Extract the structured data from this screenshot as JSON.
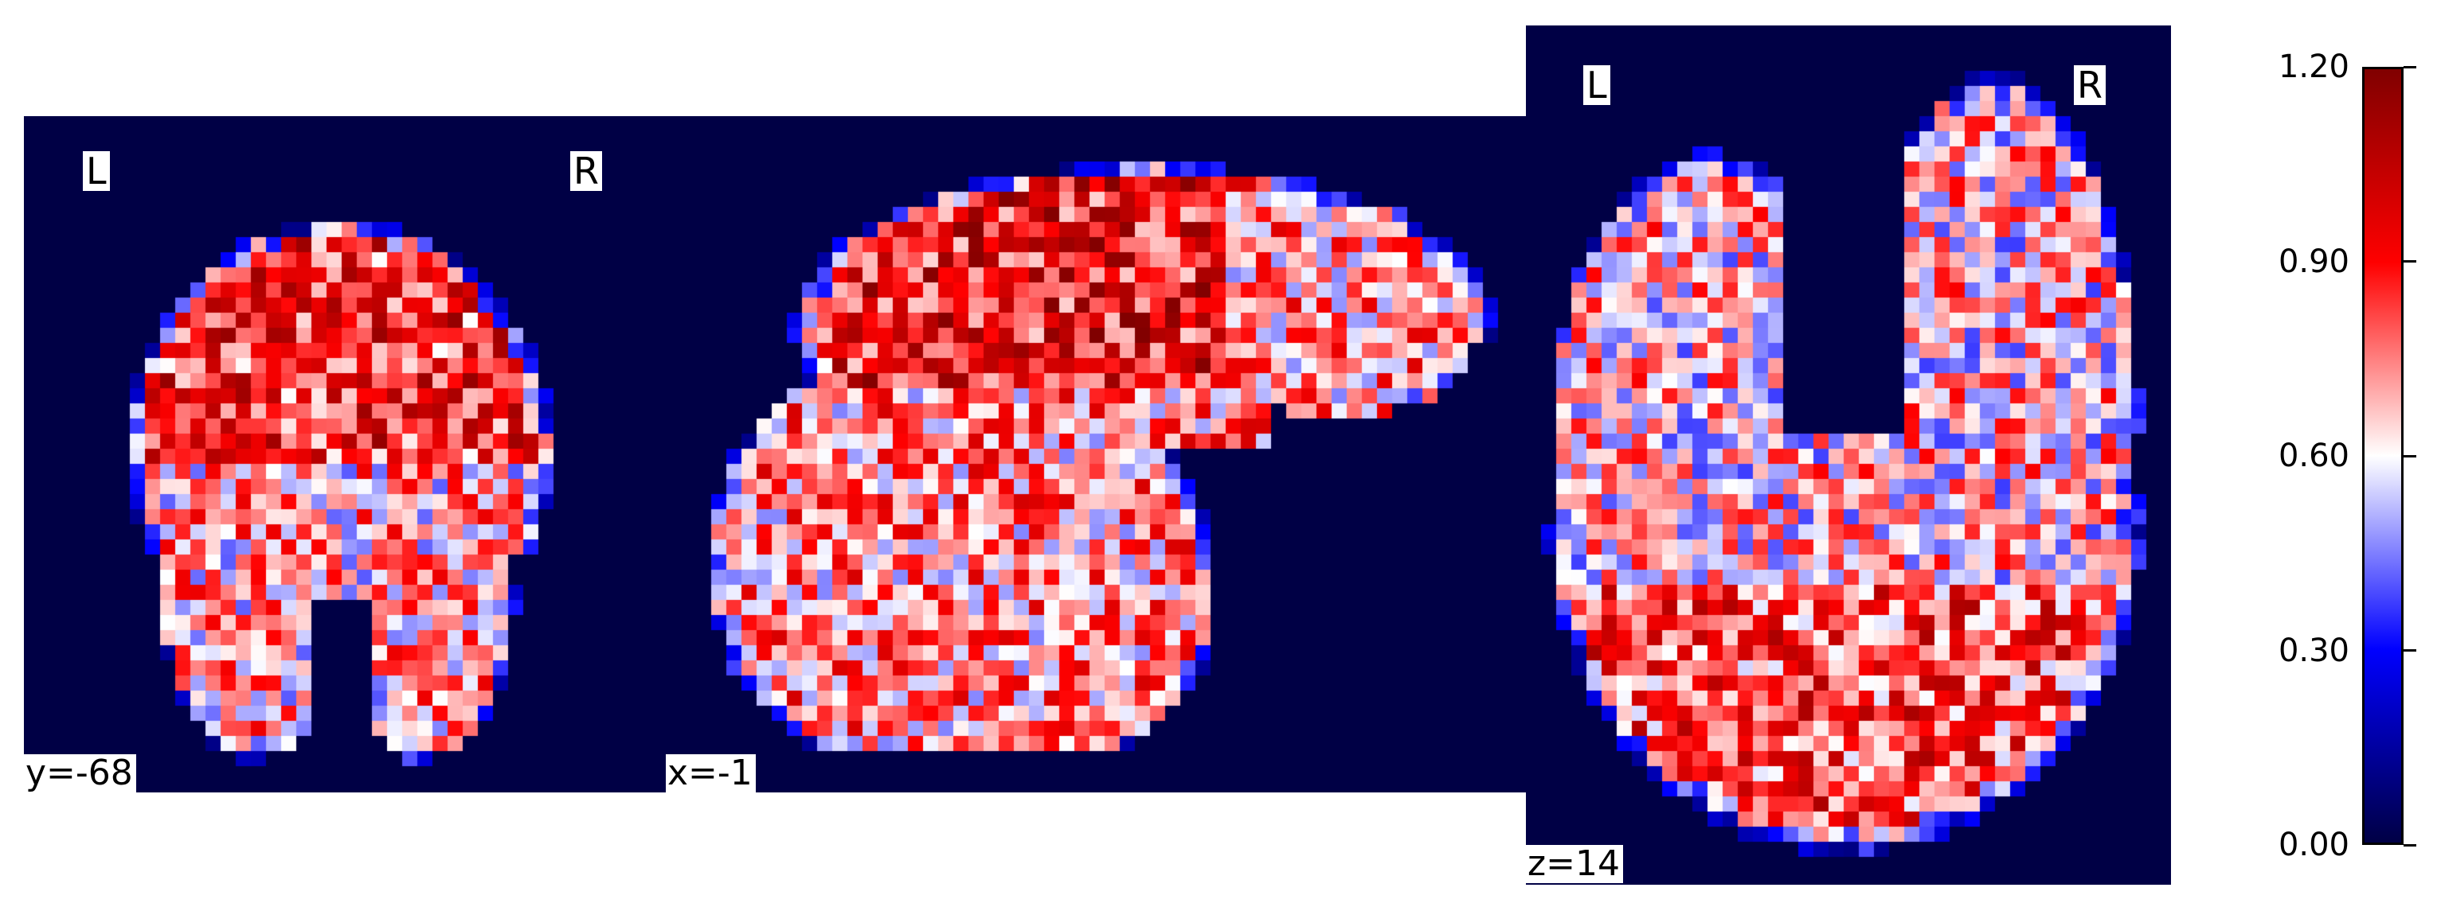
{
  "slices": {
    "coronal": {
      "coord_label": "y=-68",
      "left_label": "L",
      "right_label": "R"
    },
    "sagittal": {
      "coord_label": "x=-1"
    },
    "axial": {
      "coord_label": "z=14",
      "left_label": "L",
      "right_label": "R"
    }
  },
  "colorbar": {
    "colormap": "seismic",
    "min": 0.0,
    "max": 1.2,
    "ticks": [
      "0.00",
      "0.30",
      "0.60",
      "0.90",
      "1.20"
    ],
    "colors": [
      "#000045",
      "#0000ff",
      "#ffffff",
      "#ff0000",
      "#800000"
    ]
  },
  "background_color": "#000045"
}
